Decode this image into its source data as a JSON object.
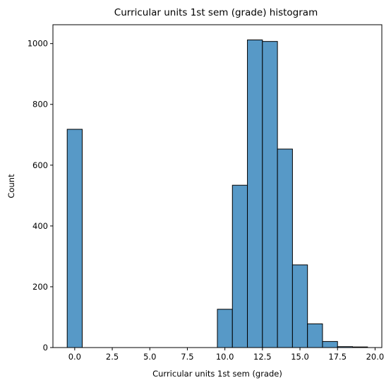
{
  "chart_data": {
    "type": "bar",
    "title": "Curricular units 1st sem (grade) histogram",
    "xlabel": "Curricular units 1st sem (grade)",
    "ylabel": "Count",
    "xlim": [
      -1.45,
      20.45
    ],
    "ylim": [
      0,
      1062
    ],
    "xticks": [
      0.0,
      2.5,
      5.0,
      7.5,
      10.0,
      12.5,
      15.0,
      17.5,
      20.0
    ],
    "xtick_labels": [
      "0.0",
      "2.5",
      "5.0",
      "7.5",
      "10.0",
      "12.5",
      "15.0",
      "17.5",
      "20.0"
    ],
    "yticks": [
      0,
      200,
      400,
      600,
      800,
      1000
    ],
    "ytick_labels": [
      "0",
      "200",
      "400",
      "600",
      "800",
      "1000"
    ],
    "bin_width": 1.0,
    "bins": [
      {
        "x0": -0.5,
        "x1": 0.5,
        "count": 718
      },
      {
        "x0": 9.5,
        "x1": 10.5,
        "count": 126
      },
      {
        "x0": 10.5,
        "x1": 11.5,
        "count": 534
      },
      {
        "x0": 11.5,
        "x1": 12.5,
        "count": 1012
      },
      {
        "x0": 12.5,
        "x1": 13.5,
        "count": 1007
      },
      {
        "x0": 13.5,
        "x1": 14.5,
        "count": 653
      },
      {
        "x0": 14.5,
        "x1": 15.5,
        "count": 272
      },
      {
        "x0": 15.5,
        "x1": 16.5,
        "count": 78
      },
      {
        "x0": 16.5,
        "x1": 17.5,
        "count": 20
      },
      {
        "x0": 17.5,
        "x1": 18.5,
        "count": 3
      },
      {
        "x0": 18.5,
        "x1": 19.5,
        "count": 2
      }
    ],
    "bar_color": "#5799c7",
    "edge_color": "#000000",
    "grid": false,
    "legend": "none"
  }
}
